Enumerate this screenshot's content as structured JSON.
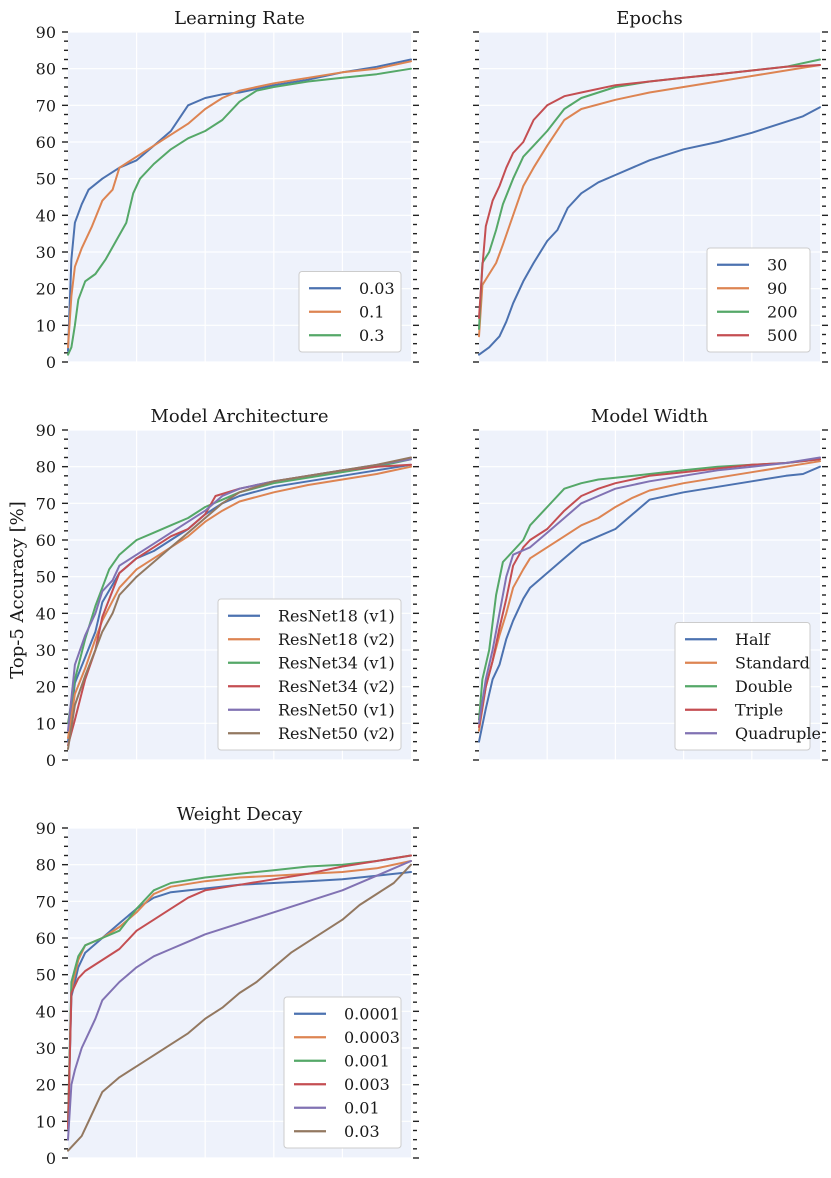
{
  "figure": {
    "ylabel": "Top-5 Accuracy [%]"
  },
  "palette": [
    "#4c72b0",
    "#dd8452",
    "#55a868",
    "#c44e52",
    "#8172b3",
    "#937860"
  ],
  "chart_data": [
    {
      "type": "line",
      "title": "Learning Rate",
      "xlabel": "",
      "ylabel": "Top-5 Accuracy [%]",
      "ylim": [
        0,
        90
      ],
      "xlim": [
        0,
        1
      ],
      "grid": true,
      "yticks": [
        "0",
        "10",
        "20",
        "30",
        "40",
        "50",
        "60",
        "70",
        "80",
        "90"
      ],
      "legend_position": "bottom-right",
      "series": [
        {
          "name": "0.03",
          "x": [
            0,
            0.01,
            0.02,
            0.04,
            0.06,
            0.1,
            0.15,
            0.2,
            0.25,
            0.3,
            0.35,
            0.4,
            0.45,
            0.5,
            0.6,
            0.7,
            0.8,
            0.9,
            1.0
          ],
          "y": [
            3,
            28,
            38,
            43,
            47,
            50,
            53,
            55,
            59,
            63,
            70,
            72,
            73,
            73.5,
            75.5,
            77,
            79,
            80.5,
            82.5
          ]
        },
        {
          "name": "0.1",
          "x": [
            0,
            0.01,
            0.02,
            0.04,
            0.07,
            0.1,
            0.13,
            0.15,
            0.2,
            0.25,
            0.3,
            0.35,
            0.4,
            0.45,
            0.5,
            0.6,
            0.7,
            0.8,
            0.9,
            1.0
          ],
          "y": [
            4,
            18,
            26,
            31,
            37,
            44,
            47,
            53,
            56,
            59,
            62,
            65,
            69,
            72,
            74,
            76,
            77.5,
            79,
            80,
            82
          ]
        },
        {
          "name": "0.3",
          "x": [
            0,
            0.01,
            0.02,
            0.03,
            0.05,
            0.08,
            0.11,
            0.14,
            0.17,
            0.19,
            0.21,
            0.25,
            0.3,
            0.35,
            0.4,
            0.45,
            0.5,
            0.55,
            0.6,
            0.7,
            0.8,
            0.9,
            1.0
          ],
          "y": [
            2,
            4,
            10,
            17,
            22,
            24,
            28,
            33,
            38,
            46,
            50,
            54,
            58,
            61,
            63,
            66,
            71,
            74,
            75,
            76.5,
            77.5,
            78.5,
            80
          ]
        }
      ]
    },
    {
      "type": "line",
      "title": "Epochs",
      "xlabel": "",
      "ylabel": "",
      "ylim": [
        0,
        90
      ],
      "xlim": [
        0,
        1
      ],
      "grid": true,
      "legend_position": "bottom-right",
      "series": [
        {
          "name": "30",
          "x": [
            0,
            0.03,
            0.06,
            0.08,
            0.1,
            0.13,
            0.16,
            0.2,
            0.23,
            0.26,
            0.3,
            0.35,
            0.4,
            0.5,
            0.6,
            0.7,
            0.8,
            0.9,
            0.95,
            1.0
          ],
          "y": [
            2,
            4,
            7,
            11,
            16,
            22,
            27,
            33,
            36,
            42,
            46,
            49,
            51,
            55,
            58,
            60,
            62.5,
            65.5,
            67,
            69.5
          ]
        },
        {
          "name": "90",
          "x": [
            0,
            0.01,
            0.03,
            0.05,
            0.07,
            0.1,
            0.13,
            0.16,
            0.2,
            0.25,
            0.3,
            0.4,
            0.5,
            0.6,
            0.7,
            0.8,
            0.9,
            1.0
          ],
          "y": [
            7,
            21,
            24,
            27,
            32,
            40,
            48,
            53,
            59,
            66,
            69,
            71.5,
            73.5,
            75,
            76.5,
            78,
            79.5,
            81
          ]
        },
        {
          "name": "200",
          "x": [
            0,
            0.01,
            0.03,
            0.05,
            0.07,
            0.1,
            0.13,
            0.16,
            0.2,
            0.25,
            0.3,
            0.4,
            0.5,
            0.6,
            0.7,
            0.8,
            0.9,
            1.0
          ],
          "y": [
            9,
            27,
            30,
            36,
            43,
            50,
            56,
            59,
            63,
            69,
            72,
            75,
            76.5,
            77.5,
            78.5,
            79.5,
            80.5,
            82.5
          ]
        },
        {
          "name": "500",
          "x": [
            0,
            0.01,
            0.02,
            0.04,
            0.06,
            0.08,
            0.1,
            0.13,
            0.16,
            0.2,
            0.25,
            0.3,
            0.4,
            0.5,
            0.6,
            0.7,
            0.8,
            0.9,
            1.0
          ],
          "y": [
            12,
            26,
            37,
            44,
            48,
            53,
            57,
            60,
            66,
            70,
            72.5,
            73.5,
            75.5,
            76.5,
            77.5,
            78.5,
            79.5,
            80.5,
            81
          ]
        }
      ]
    },
    {
      "type": "line",
      "title": "Model Architecture",
      "xlabel": "",
      "ylabel": "Top-5 Accuracy [%]",
      "ylim": [
        0,
        90
      ],
      "xlim": [
        0,
        1
      ],
      "grid": true,
      "yticks": [
        "0",
        "10",
        "20",
        "30",
        "40",
        "50",
        "60",
        "70",
        "80",
        "90"
      ],
      "legend_position": "bottom-right",
      "series": [
        {
          "name": "ResNet18 (v1)",
          "x": [
            0,
            0.02,
            0.05,
            0.08,
            0.1,
            0.15,
            0.2,
            0.25,
            0.3,
            0.35,
            0.4,
            0.45,
            0.5,
            0.6,
            0.7,
            0.8,
            0.9,
            1.0
          ],
          "y": [
            5,
            21,
            28,
            35,
            43,
            51,
            55,
            57,
            60,
            63,
            67,
            70,
            72,
            74.5,
            76,
            77.5,
            79,
            80.5
          ]
        },
        {
          "name": "ResNet18 (v2)",
          "x": [
            0,
            0.02,
            0.05,
            0.08,
            0.1,
            0.15,
            0.2,
            0.25,
            0.3,
            0.35,
            0.4,
            0.45,
            0.5,
            0.6,
            0.7,
            0.8,
            0.9,
            1.0
          ],
          "y": [
            6,
            18,
            25,
            33,
            38,
            47,
            52,
            55,
            58,
            61,
            65,
            68,
            70.5,
            73,
            75,
            76.5,
            78,
            80
          ]
        },
        {
          "name": "ResNet34 (v1)",
          "x": [
            0,
            0.02,
            0.05,
            0.08,
            0.1,
            0.12,
            0.15,
            0.2,
            0.25,
            0.3,
            0.35,
            0.4,
            0.45,
            0.5,
            0.6,
            0.7,
            0.8,
            0.9,
            1.0
          ],
          "y": [
            10,
            22,
            33,
            42,
            47,
            52,
            56,
            60,
            62,
            64,
            66,
            69,
            71,
            73,
            75.5,
            77,
            78.5,
            80,
            82
          ]
        },
        {
          "name": "ResNet34 (v2)",
          "x": [
            0,
            0.02,
            0.05,
            0.08,
            0.1,
            0.15,
            0.2,
            0.25,
            0.3,
            0.35,
            0.4,
            0.43,
            0.5,
            0.6,
            0.7,
            0.8,
            0.9,
            1.0
          ],
          "y": [
            4,
            11,
            22,
            30,
            39,
            51,
            55,
            58,
            61,
            63,
            67,
            72,
            74,
            76,
            77.5,
            79,
            80,
            80.5
          ]
        },
        {
          "name": "ResNet50 (v1)",
          "x": [
            0,
            0.02,
            0.05,
            0.08,
            0.1,
            0.13,
            0.15,
            0.2,
            0.25,
            0.3,
            0.35,
            0.4,
            0.45,
            0.5,
            0.6,
            0.7,
            0.8,
            0.9,
            1.0
          ],
          "y": [
            8,
            26,
            34,
            40,
            46,
            49,
            53,
            56,
            59,
            62,
            65,
            68,
            72,
            74,
            76,
            77.5,
            79,
            80.5,
            82
          ]
        },
        {
          "name": "ResNet50 (v2)",
          "x": [
            0,
            0.02,
            0.05,
            0.08,
            0.1,
            0.13,
            0.15,
            0.2,
            0.25,
            0.3,
            0.35,
            0.4,
            0.45,
            0.5,
            0.6,
            0.7,
            0.8,
            0.9,
            1.0
          ],
          "y": [
            3,
            15,
            23,
            30,
            35,
            40,
            45,
            50,
            54,
            58,
            62,
            66,
            70,
            73,
            76,
            77.5,
            79,
            80.5,
            82.5
          ]
        }
      ]
    },
    {
      "type": "line",
      "title": "Model Width",
      "xlabel": "",
      "ylabel": "",
      "ylim": [
        0,
        90
      ],
      "xlim": [
        0,
        1
      ],
      "grid": true,
      "legend_position": "bottom-right",
      "series": [
        {
          "name": "Half",
          "x": [
            0,
            0.02,
            0.04,
            0.06,
            0.08,
            0.1,
            0.13,
            0.15,
            0.2,
            0.25,
            0.3,
            0.35,
            0.4,
            0.45,
            0.5,
            0.6,
            0.7,
            0.8,
            0.9,
            0.95,
            1.0
          ],
          "y": [
            5,
            14,
            22,
            26,
            33,
            38,
            44,
            47,
            51,
            55,
            59,
            61,
            63,
            67,
            71,
            73,
            74.5,
            76,
            77.5,
            78,
            80
          ]
        },
        {
          "name": "Standard",
          "x": [
            0,
            0.02,
            0.04,
            0.06,
            0.08,
            0.1,
            0.13,
            0.15,
            0.2,
            0.25,
            0.3,
            0.35,
            0.4,
            0.45,
            0.5,
            0.6,
            0.7,
            0.8,
            0.9,
            1.0
          ],
          "y": [
            8,
            20,
            27,
            34,
            40,
            47,
            52,
            55,
            58,
            61,
            64,
            66,
            69,
            71.5,
            73.5,
            75.5,
            77,
            78.5,
            80,
            81.5
          ]
        },
        {
          "name": "Double",
          "x": [
            0,
            0.01,
            0.03,
            0.05,
            0.07,
            0.1,
            0.13,
            0.15,
            0.2,
            0.25,
            0.3,
            0.35,
            0.4,
            0.5,
            0.6,
            0.7,
            0.8,
            0.9,
            1.0
          ],
          "y": [
            11,
            22,
            30,
            45,
            54,
            57,
            60,
            64,
            69,
            74,
            75.5,
            76.5,
            77,
            78,
            79,
            80,
            80.5,
            81,
            82
          ]
        },
        {
          "name": "Triple",
          "x": [
            0,
            0.02,
            0.04,
            0.06,
            0.08,
            0.1,
            0.13,
            0.15,
            0.2,
            0.25,
            0.3,
            0.35,
            0.4,
            0.5,
            0.6,
            0.7,
            0.8,
            0.9,
            1.0
          ],
          "y": [
            9,
            20,
            27,
            36,
            44,
            53,
            58,
            60,
            63,
            68,
            72,
            74,
            75.5,
            77.5,
            78.5,
            79.5,
            80.5,
            81,
            82
          ]
        },
        {
          "name": "Quadruple",
          "x": [
            0,
            0.02,
            0.04,
            0.06,
            0.08,
            0.1,
            0.15,
            0.2,
            0.25,
            0.3,
            0.35,
            0.4,
            0.5,
            0.6,
            0.7,
            0.8,
            0.9,
            1.0
          ],
          "y": [
            10,
            22,
            30,
            40,
            50,
            56,
            58,
            62,
            66,
            70,
            72,
            74,
            76,
            77.5,
            79,
            80,
            81,
            82.5
          ]
        }
      ]
    },
    {
      "type": "line",
      "title": "Weight Decay",
      "xlabel": "",
      "ylabel": "Top-5 Accuracy [%]",
      "ylim": [
        0,
        90
      ],
      "xlim": [
        0,
        1
      ],
      "grid": true,
      "yticks": [
        "0",
        "10",
        "20",
        "30",
        "40",
        "50",
        "60",
        "70",
        "80",
        "90"
      ],
      "legend_position": "bottom-right",
      "series": [
        {
          "name": "0.0001",
          "x": [
            0,
            0.01,
            0.03,
            0.05,
            0.1,
            0.15,
            0.2,
            0.25,
            0.3,
            0.4,
            0.5,
            0.6,
            0.7,
            0.8,
            0.9,
            1.0
          ],
          "y": [
            8,
            44,
            52,
            56,
            60,
            64,
            68,
            71,
            72.5,
            73.5,
            74.5,
            75,
            75.5,
            76,
            77,
            78
          ]
        },
        {
          "name": "0.0003",
          "x": [
            0,
            0.01,
            0.03,
            0.05,
            0.1,
            0.15,
            0.2,
            0.25,
            0.3,
            0.4,
            0.5,
            0.6,
            0.7,
            0.8,
            0.9,
            1.0
          ],
          "y": [
            9,
            46,
            54,
            58,
            60,
            63,
            67,
            72,
            74,
            75.5,
            76.5,
            77,
            77.5,
            78,
            79,
            81
          ]
        },
        {
          "name": "0.001",
          "x": [
            0,
            0.01,
            0.03,
            0.05,
            0.1,
            0.15,
            0.2,
            0.25,
            0.3,
            0.4,
            0.5,
            0.6,
            0.7,
            0.8,
            0.9,
            1.0
          ],
          "y": [
            10,
            48,
            55,
            58,
            60,
            62,
            68,
            73,
            75,
            76.5,
            77.5,
            78.5,
            79.5,
            80,
            81,
            82.5
          ]
        },
        {
          "name": "0.003",
          "x": [
            0,
            0.01,
            0.03,
            0.05,
            0.1,
            0.15,
            0.2,
            0.25,
            0.3,
            0.35,
            0.4,
            0.5,
            0.6,
            0.7,
            0.8,
            0.9,
            1.0
          ],
          "y": [
            8,
            45,
            49,
            51,
            54,
            57,
            62,
            65,
            68,
            71,
            73,
            74.5,
            76,
            77.5,
            79.5,
            81,
            82.5
          ]
        },
        {
          "name": "0.01",
          "x": [
            0,
            0.01,
            0.02,
            0.04,
            0.06,
            0.08,
            0.1,
            0.15,
            0.2,
            0.25,
            0.3,
            0.35,
            0.4,
            0.5,
            0.6,
            0.7,
            0.8,
            0.9,
            1.0
          ],
          "y": [
            5,
            20,
            24,
            30,
            34,
            38,
            43,
            48,
            52,
            55,
            57,
            59,
            61,
            64,
            67,
            70,
            73,
            77,
            81
          ]
        },
        {
          "name": "0.03",
          "x": [
            0,
            0.02,
            0.04,
            0.06,
            0.08,
            0.1,
            0.15,
            0.2,
            0.25,
            0.3,
            0.35,
            0.4,
            0.45,
            0.5,
            0.55,
            0.6,
            0.65,
            0.7,
            0.75,
            0.8,
            0.85,
            0.9,
            0.95,
            1.0
          ],
          "y": [
            2,
            4,
            6,
            10,
            14,
            18,
            22,
            25,
            28,
            31,
            34,
            38,
            41,
            45,
            48,
            52,
            56,
            59,
            62,
            65,
            69,
            72,
            75,
            80
          ]
        }
      ]
    }
  ]
}
